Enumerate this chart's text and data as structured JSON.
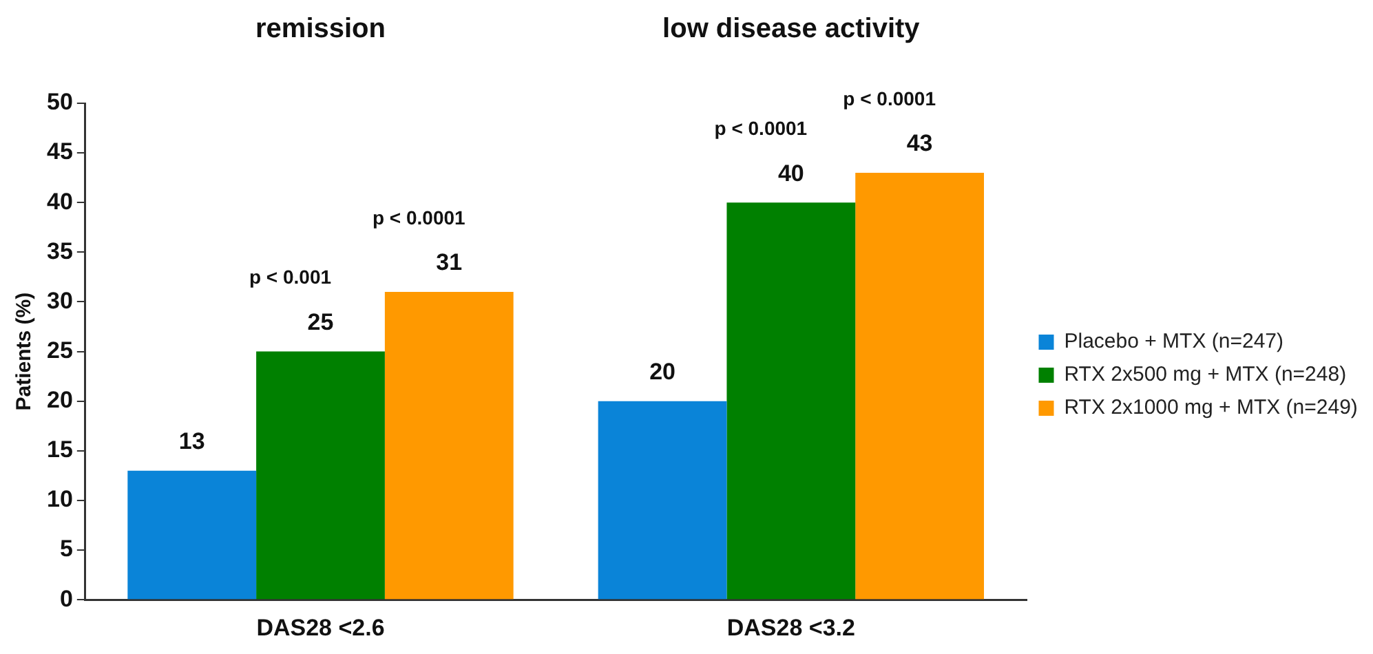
{
  "chart_data": {
    "type": "bar",
    "ylabel": "Patients (%)",
    "categories": [
      "DAS28 <2.6",
      "DAS28 <3.2"
    ],
    "series": [
      {
        "name": "Placebo + MTX (n=247)",
        "color": "#0a84d8",
        "values": [
          13,
          20
        ]
      },
      {
        "name": "RTX 2x500 mg + MTX (n=248)",
        "color": "#008000",
        "values": [
          25,
          40
        ]
      },
      {
        "name": "RTX 2x1000 mg + MTX (n=249)",
        "color": "#ff9900",
        "values": [
          31,
          43
        ]
      }
    ],
    "ylim": [
      0,
      50
    ],
    "yticks": [
      0,
      5,
      10,
      15,
      20,
      25,
      30,
      35,
      40,
      45,
      50
    ],
    "grid": false,
    "legend": "right",
    "data_labels": true,
    "annotations": [
      "remission",
      "low disease activity",
      "p < 0.001",
      "p < 0.0001",
      "p < 0.0001",
      "p < 0.0001"
    ]
  }
}
